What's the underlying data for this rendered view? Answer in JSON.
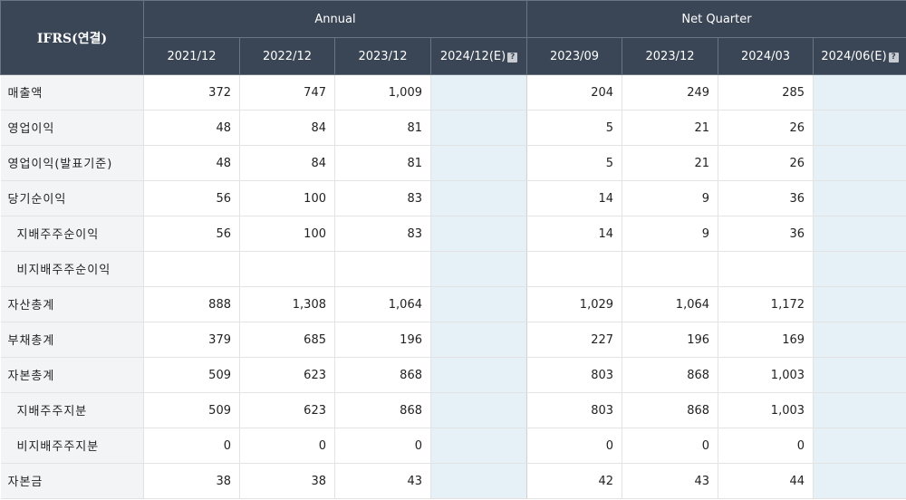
{
  "header": {
    "ifrs_label": "IFRS(연결)",
    "annual_label": "Annual",
    "quarter_label": "Net Quarter",
    "annual_periods": [
      "2021/12",
      "2022/12",
      "2023/12",
      "2024/12(E)"
    ],
    "quarter_periods": [
      "2023/09",
      "2023/12",
      "2024/03",
      "2024/06(E)"
    ],
    "info_icon_glyph": "?"
  },
  "rows": [
    {
      "label": "매출액",
      "annual": [
        "372",
        "747",
        "1,009",
        ""
      ],
      "quarter": [
        "204",
        "249",
        "285",
        ""
      ]
    },
    {
      "label": "영업이익",
      "annual": [
        "48",
        "84",
        "81",
        ""
      ],
      "quarter": [
        "5",
        "21",
        "26",
        ""
      ]
    },
    {
      "label": "영업이익(발표기준)",
      "annual": [
        "48",
        "84",
        "81",
        ""
      ],
      "quarter": [
        "5",
        "21",
        "26",
        ""
      ]
    },
    {
      "label": "당기순이익",
      "annual": [
        "56",
        "100",
        "83",
        ""
      ],
      "quarter": [
        "14",
        "9",
        "36",
        ""
      ]
    },
    {
      "label": "지배주주순이익",
      "annual": [
        "56",
        "100",
        "83",
        ""
      ],
      "quarter": [
        "14",
        "9",
        "36",
        ""
      ]
    },
    {
      "label": "비지배주주순이익",
      "annual": [
        "",
        "",
        "",
        ""
      ],
      "quarter": [
        "",
        "",
        "",
        ""
      ]
    },
    {
      "label": "자산총계",
      "annual": [
        "888",
        "1,308",
        "1,064",
        ""
      ],
      "quarter": [
        "1,029",
        "1,064",
        "1,172",
        ""
      ]
    },
    {
      "label": "부채총계",
      "annual": [
        "379",
        "685",
        "196",
        ""
      ],
      "quarter": [
        "227",
        "196",
        "169",
        ""
      ]
    },
    {
      "label": "자본총계",
      "annual": [
        "509",
        "623",
        "868",
        ""
      ],
      "quarter": [
        "803",
        "868",
        "1,003",
        ""
      ]
    },
    {
      "label": "지배주주지분",
      "annual": [
        "509",
        "623",
        "868",
        ""
      ],
      "quarter": [
        "803",
        "868",
        "1,003",
        ""
      ]
    },
    {
      "label": "비지배주주지분",
      "annual": [
        "0",
        "0",
        "0",
        ""
      ],
      "quarter": [
        "0",
        "0",
        "0",
        ""
      ]
    },
    {
      "label": "자본금",
      "annual": [
        "38",
        "38",
        "43",
        ""
      ],
      "quarter": [
        "42",
        "43",
        "44",
        ""
      ]
    }
  ]
}
